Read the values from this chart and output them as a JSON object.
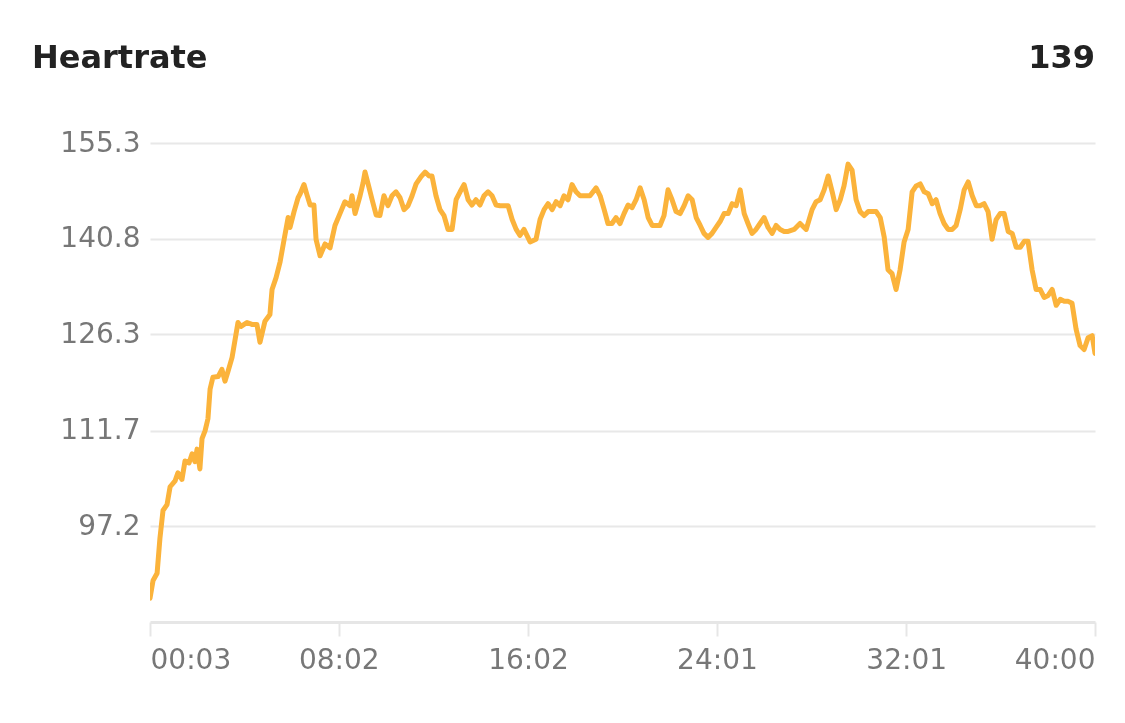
{
  "chart_data": {
    "type": "line",
    "title": "Heartrate",
    "annotations": [
      "139"
    ],
    "xlim": [
      0.05,
      40
    ],
    "ylim": [
      82.7,
      155.3
    ],
    "xticks": [
      {
        "value": 0.05,
        "label": "00:03"
      },
      {
        "value": 8.033,
        "label": "08:02"
      },
      {
        "value": 16.033,
        "label": "16:02"
      },
      {
        "value": 24.017,
        "label": "24:01"
      },
      {
        "value": 32.017,
        "label": "32:01"
      },
      {
        "value": 40,
        "label": "40:00"
      }
    ],
    "yticks": [
      97.2,
      111.7,
      126.3,
      140.8,
      155.3
    ],
    "grid": "y",
    "marker": "none",
    "line_style": "solid",
    "series": [
      {
        "color": "#fbb33b",
        "x": [
          0.05,
          0.18,
          0.35,
          0.47,
          0.6,
          0.77,
          0.9,
          1.11,
          1.23,
          1.4,
          1.53,
          1.7,
          1.83,
          1.95,
          2.04,
          2.16,
          2.25,
          2.38,
          2.5,
          2.59,
          2.71,
          2.93,
          3.09,
          3.22,
          3.35,
          3.52,
          3.77,
          3.9,
          4.15,
          4.36,
          4.57,
          4.7,
          4.91,
          5.12,
          5.21,
          5.38,
          5.55,
          5.72,
          5.89,
          5.97,
          6.14,
          6.31,
          6.4,
          6.56,
          6.69,
          6.82,
          6.98,
          7.07,
          7.24,
          7.45,
          7.66,
          7.87,
          8.08,
          8.29,
          8.51,
          8.59,
          8.72,
          8.93,
          9.06,
          9.14,
          9.27,
          9.44,
          9.61,
          9.77,
          9.94,
          10.11,
          10.28,
          10.45,
          10.62,
          10.79,
          10.96,
          11.13,
          11.3,
          11.51,
          11.68,
          11.85,
          11.97,
          12.14,
          12.31,
          12.48,
          12.65,
          12.82,
          12.99,
          13.16,
          13.33,
          13.5,
          13.66,
          13.83,
          14.0,
          14.17,
          14.34,
          14.51,
          14.68,
          14.85,
          15.02,
          15.19,
          15.36,
          15.53,
          15.69,
          15.86,
          16.12,
          16.37,
          16.54,
          16.71,
          16.88,
          17.05,
          17.22,
          17.39,
          17.55,
          17.72,
          17.89,
          18.06,
          18.23,
          18.4,
          18.65,
          18.91,
          19.08,
          19.25,
          19.41,
          19.58,
          19.75,
          19.92,
          20.09,
          20.26,
          20.43,
          20.6,
          20.77,
          20.94,
          21.11,
          21.28,
          21.44,
          21.61,
          21.78,
          21.95,
          22.12,
          22.29,
          22.46,
          22.63,
          22.8,
          22.97,
          23.14,
          23.31,
          23.47,
          23.64,
          23.81,
          23.98,
          24.15,
          24.32,
          24.49,
          24.66,
          24.83,
          25.0,
          25.17,
          25.33,
          25.5,
          25.67,
          25.84,
          26.01,
          26.18,
          26.35,
          26.52,
          26.69,
          26.86,
          27.03,
          27.28,
          27.53,
          27.79,
          28.04,
          28.21,
          28.38,
          28.55,
          28.72,
          28.89,
          29.06,
          29.23,
          29.39,
          29.56,
          29.73,
          29.9,
          30.07,
          30.24,
          30.41,
          30.58,
          30.75,
          30.92,
          31.09,
          31.25,
          31.42,
          31.59,
          31.76,
          31.93,
          32.1,
          32.27,
          32.44,
          32.61,
          32.78,
          32.95,
          33.12,
          33.28,
          33.45,
          33.62,
          33.79,
          33.96,
          34.13,
          34.3,
          34.47,
          34.64,
          34.81,
          34.98,
          35.14,
          35.31,
          35.48,
          35.65,
          35.82,
          35.99,
          36.16,
          36.33,
          36.5,
          36.67,
          36.84,
          37.01,
          37.17,
          37.34,
          37.51,
          37.68,
          37.85,
          38.02,
          38.19,
          38.36,
          38.53,
          38.7,
          38.87,
          39.03,
          39.2,
          39.37,
          39.54,
          39.71,
          39.88,
          40.0
        ],
        "values": [
          86.3,
          89.0,
          90.1,
          95.4,
          99.6,
          100.5,
          103.2,
          104.1,
          105.3,
          104.3,
          107.1,
          106.8,
          108.2,
          107.0,
          108.9,
          105.9,
          110.5,
          111.7,
          113.5,
          118.0,
          119.8,
          119.9,
          121.0,
          119.2,
          120.7,
          122.8,
          128.1,
          127.5,
          128.1,
          127.8,
          127.8,
          125.1,
          128.3,
          129.3,
          133.1,
          134.9,
          137.3,
          140.7,
          144.0,
          142.5,
          144.9,
          147.0,
          147.6,
          149.0,
          147.4,
          145.9,
          145.9,
          140.7,
          138.2,
          140.0,
          139.4,
          142.8,
          144.6,
          146.4,
          145.8,
          147.3,
          144.6,
          147.3,
          149.3,
          150.9,
          149.1,
          146.7,
          144.4,
          144.3,
          147.3,
          145.8,
          147.3,
          147.9,
          147.0,
          145.2,
          145.8,
          147.3,
          149.1,
          150.2,
          150.9,
          150.3,
          150.3,
          147.3,
          145.2,
          144.3,
          142.2,
          142.2,
          146.7,
          147.9,
          149.0,
          146.7,
          145.9,
          146.7,
          145.9,
          147.3,
          147.9,
          147.3,
          145.9,
          145.8,
          145.8,
          145.8,
          143.7,
          142.2,
          141.3,
          142.2,
          140.3,
          140.7,
          143.7,
          145.2,
          146.1,
          145.2,
          146.4,
          145.8,
          147.3,
          146.7,
          149.0,
          147.9,
          147.3,
          147.3,
          147.3,
          148.5,
          147.3,
          145.2,
          143.1,
          143.1,
          144.0,
          143.1,
          144.6,
          145.9,
          145.5,
          146.7,
          148.5,
          146.7,
          144.0,
          142.8,
          142.8,
          142.8,
          144.3,
          148.2,
          146.7,
          144.9,
          144.6,
          145.8,
          147.3,
          146.7,
          144.0,
          142.8,
          141.6,
          141.0,
          141.6,
          142.5,
          143.4,
          144.6,
          144.6,
          146.1,
          145.8,
          148.2,
          144.6,
          143.1,
          141.6,
          142.2,
          143.1,
          144.0,
          142.5,
          141.6,
          142.8,
          142.2,
          141.9,
          141.9,
          142.2,
          143.1,
          142.2,
          145.2,
          146.4,
          146.7,
          148.2,
          150.3,
          147.9,
          145.2,
          146.7,
          148.8,
          152.1,
          151.2,
          146.7,
          144.9,
          144.3,
          144.9,
          144.9,
          144.9,
          144.0,
          141.0,
          136.1,
          135.5,
          133.1,
          136.1,
          140.3,
          142.2,
          147.9,
          148.8,
          149.1,
          147.9,
          147.6,
          146.1,
          146.7,
          144.6,
          143.1,
          142.2,
          142.2,
          142.8,
          145.2,
          148.2,
          149.4,
          147.3,
          145.8,
          145.8,
          146.1,
          144.9,
          140.7,
          143.7,
          144.6,
          144.6,
          141.9,
          141.6,
          139.5,
          139.5,
          140.4,
          140.4,
          136.1,
          133.1,
          133.1,
          131.9,
          132.2,
          133.1,
          130.7,
          131.6,
          131.3,
          131.3,
          131.0,
          127.1,
          124.6,
          124.0,
          125.8,
          126.1,
          123.4
        ]
      }
    ]
  }
}
